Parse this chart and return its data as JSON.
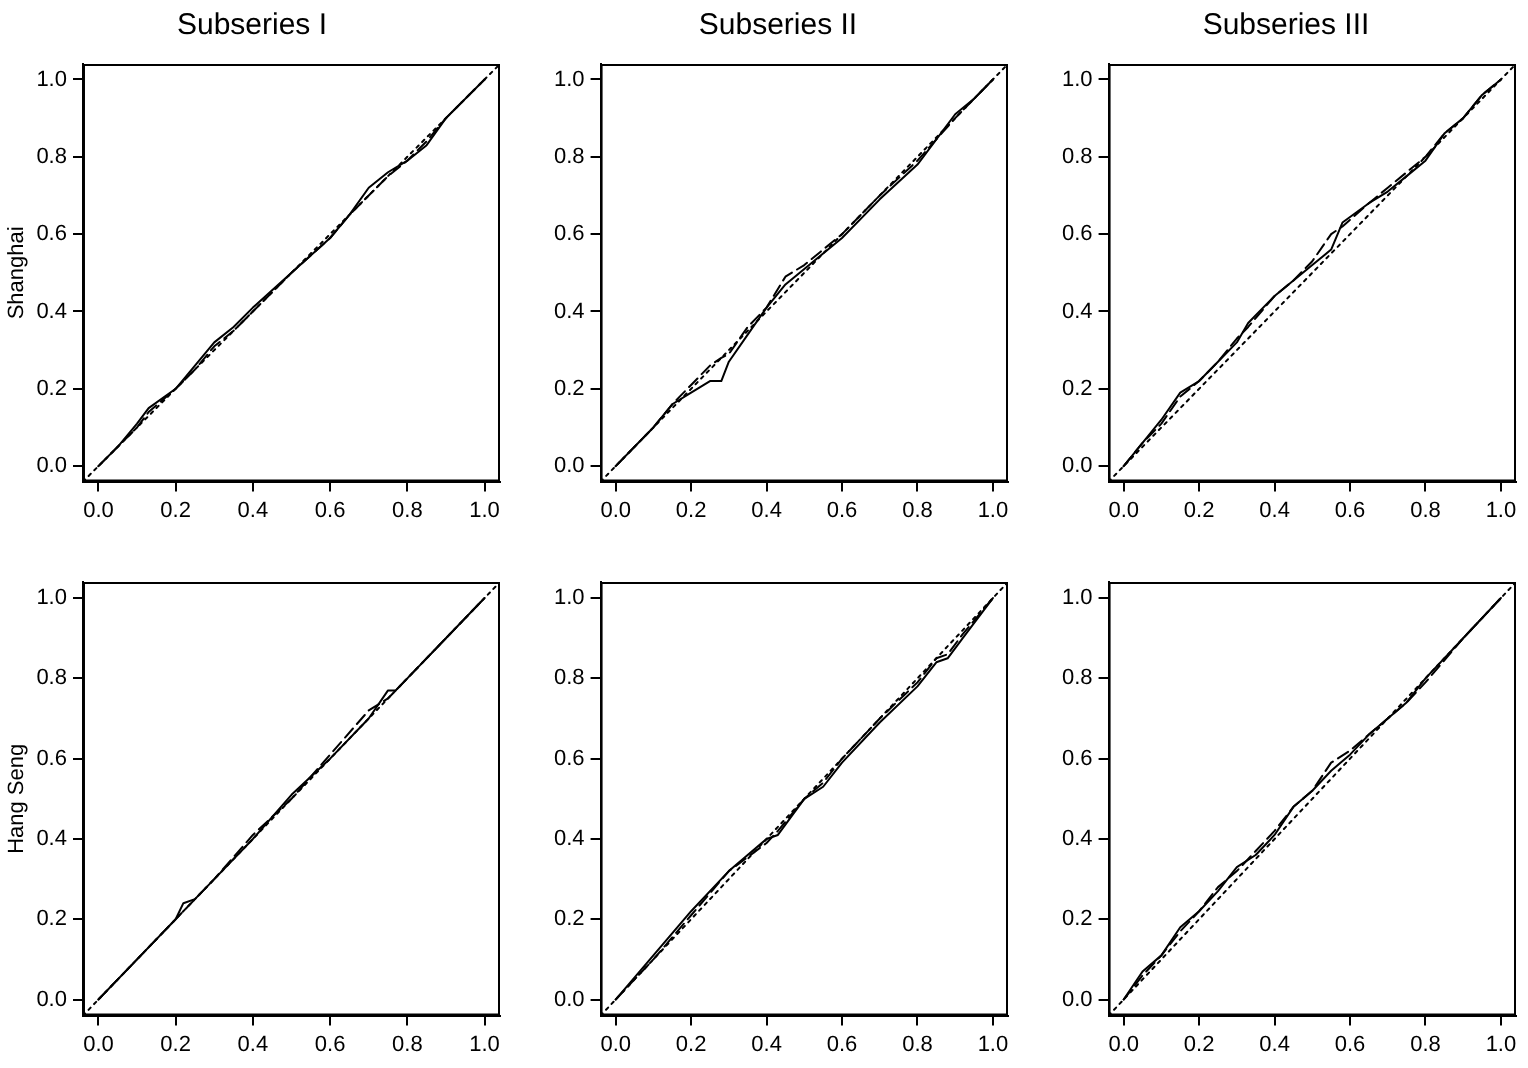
{
  "chart_data": [
    {
      "type": "line",
      "title": "Subseries I",
      "ylabel": "Shanghai",
      "marker": "none",
      "xlim": [
        -0.04,
        1.04
      ],
      "ylim": [
        -0.04,
        1.04
      ],
      "xticks": [
        {
          "value": 0,
          "label": "0.0"
        },
        {
          "value": 0.2,
          "label": "0.2"
        },
        {
          "value": 0.4,
          "label": "0.4"
        },
        {
          "value": 0.6,
          "label": "0.6"
        },
        {
          "value": 0.8,
          "label": "0.8"
        },
        {
          "value": 1,
          "label": "1.0"
        }
      ],
      "yticks": [
        {
          "value": 0,
          "label": "0.0"
        },
        {
          "value": 0.2,
          "label": "0.2"
        },
        {
          "value": 0.4,
          "label": "0.4"
        },
        {
          "value": 0.6,
          "label": "0.6"
        },
        {
          "value": 0.8,
          "label": "0.8"
        },
        {
          "value": 1,
          "label": "1.0"
        }
      ],
      "series": [
        {
          "color": "#000000",
          "line_style": "solid",
          "x": [
            0,
            0.05,
            0.1,
            0.13,
            0.2,
            0.25,
            0.3,
            0.35,
            0.4,
            0.5,
            0.6,
            0.65,
            0.7,
            0.75,
            0.8,
            0.85,
            0.9,
            1
          ],
          "values": [
            0,
            0.05,
            0.11,
            0.15,
            0.2,
            0.26,
            0.32,
            0.36,
            0.41,
            0.5,
            0.59,
            0.65,
            0.72,
            0.76,
            0.79,
            0.83,
            0.9,
            1
          ]
        },
        {
          "color": "#000000",
          "line_style": "dashed",
          "x": [
            0,
            0.05,
            0.1,
            0.13,
            0.2,
            0.25,
            0.3,
            0.35,
            0.4,
            0.5,
            0.6,
            0.65,
            0.7,
            0.75,
            0.8,
            0.85,
            0.9,
            1
          ],
          "values": [
            0,
            0.05,
            0.1,
            0.14,
            0.2,
            0.25,
            0.31,
            0.35,
            0.4,
            0.5,
            0.59,
            0.65,
            0.7,
            0.75,
            0.79,
            0.84,
            0.9,
            1
          ]
        },
        {
          "color": "#000000",
          "line_style": "dotted",
          "x": [
            -0.04,
            1.04
          ],
          "values": [
            -0.04,
            1.04
          ]
        }
      ]
    },
    {
      "type": "line",
      "title": "Subseries II",
      "marker": "none",
      "xlim": [
        -0.04,
        1.04
      ],
      "ylim": [
        -0.04,
        1.04
      ],
      "xticks": [
        {
          "value": 0,
          "label": "0.0"
        },
        {
          "value": 0.2,
          "label": "0.2"
        },
        {
          "value": 0.4,
          "label": "0.4"
        },
        {
          "value": 0.6,
          "label": "0.6"
        },
        {
          "value": 0.8,
          "label": "0.8"
        },
        {
          "value": 1,
          "label": "1.0"
        }
      ],
      "yticks": [
        {
          "value": 0,
          "label": "0.0"
        },
        {
          "value": 0.2,
          "label": "0.2"
        },
        {
          "value": 0.4,
          "label": "0.4"
        },
        {
          "value": 0.6,
          "label": "0.6"
        },
        {
          "value": 0.8,
          "label": "0.8"
        },
        {
          "value": 1,
          "label": "1.0"
        }
      ],
      "series": [
        {
          "color": "#000000",
          "line_style": "solid",
          "x": [
            0,
            0.05,
            0.1,
            0.15,
            0.2,
            0.25,
            0.28,
            0.3,
            0.35,
            0.4,
            0.45,
            0.5,
            0.6,
            0.7,
            0.8,
            0.9,
            0.95,
            1
          ],
          "values": [
            0,
            0.05,
            0.1,
            0.16,
            0.19,
            0.22,
            0.22,
            0.27,
            0.34,
            0.41,
            0.47,
            0.51,
            0.59,
            0.69,
            0.78,
            0.91,
            0.95,
            1
          ]
        },
        {
          "color": "#000000",
          "line_style": "dashed",
          "x": [
            0,
            0.05,
            0.1,
            0.15,
            0.2,
            0.25,
            0.28,
            0.3,
            0.35,
            0.4,
            0.45,
            0.5,
            0.6,
            0.7,
            0.8,
            0.9,
            0.95,
            1
          ],
          "values": [
            0,
            0.05,
            0.1,
            0.16,
            0.21,
            0.26,
            0.28,
            0.29,
            0.36,
            0.41,
            0.49,
            0.52,
            0.6,
            0.7,
            0.79,
            0.9,
            0.95,
            1
          ]
        },
        {
          "color": "#000000",
          "line_style": "dotted",
          "x": [
            -0.04,
            1.04
          ],
          "values": [
            -0.04,
            1.04
          ]
        }
      ]
    },
    {
      "type": "line",
      "title": "Subseries III",
      "marker": "none",
      "xlim": [
        -0.04,
        1.04
      ],
      "ylim": [
        -0.04,
        1.04
      ],
      "xticks": [
        {
          "value": 0,
          "label": "0.0"
        },
        {
          "value": 0.2,
          "label": "0.2"
        },
        {
          "value": 0.4,
          "label": "0.4"
        },
        {
          "value": 0.6,
          "label": "0.6"
        },
        {
          "value": 0.8,
          "label": "0.8"
        },
        {
          "value": 1,
          "label": "1.0"
        }
      ],
      "yticks": [
        {
          "value": 0,
          "label": "0.0"
        },
        {
          "value": 0.2,
          "label": "0.2"
        },
        {
          "value": 0.4,
          "label": "0.4"
        },
        {
          "value": 0.6,
          "label": "0.6"
        },
        {
          "value": 0.8,
          "label": "0.8"
        },
        {
          "value": 1,
          "label": "1.0"
        }
      ],
      "series": [
        {
          "color": "#000000",
          "line_style": "solid",
          "x": [
            0,
            0.05,
            0.1,
            0.15,
            0.2,
            0.25,
            0.3,
            0.33,
            0.4,
            0.45,
            0.5,
            0.55,
            0.58,
            0.65,
            0.7,
            0.75,
            0.8,
            0.85,
            0.9,
            0.95,
            1
          ],
          "values": [
            0,
            0.06,
            0.12,
            0.19,
            0.22,
            0.27,
            0.32,
            0.37,
            0.44,
            0.48,
            0.52,
            0.56,
            0.63,
            0.68,
            0.71,
            0.75,
            0.79,
            0.86,
            0.9,
            0.96,
            1
          ]
        },
        {
          "color": "#000000",
          "line_style": "dashed",
          "x": [
            0,
            0.05,
            0.1,
            0.15,
            0.2,
            0.25,
            0.3,
            0.33,
            0.4,
            0.45,
            0.5,
            0.55,
            0.58,
            0.65,
            0.7,
            0.75,
            0.8,
            0.85,
            0.9,
            0.95,
            1
          ],
          "values": [
            0,
            0.06,
            0.11,
            0.18,
            0.22,
            0.27,
            0.33,
            0.36,
            0.44,
            0.48,
            0.53,
            0.6,
            0.62,
            0.68,
            0.72,
            0.76,
            0.8,
            0.86,
            0.9,
            0.96,
            1
          ]
        },
        {
          "color": "#000000",
          "line_style": "dotted",
          "x": [
            -0.04,
            1.04
          ],
          "values": [
            -0.04,
            1.04
          ]
        }
      ]
    },
    {
      "type": "line",
      "ylabel": "Hang Seng",
      "marker": "none",
      "xlim": [
        -0.04,
        1.04
      ],
      "ylim": [
        -0.04,
        1.04
      ],
      "xticks": [
        {
          "value": 0,
          "label": "0.0"
        },
        {
          "value": 0.2,
          "label": "0.2"
        },
        {
          "value": 0.4,
          "label": "0.4"
        },
        {
          "value": 0.6,
          "label": "0.6"
        },
        {
          "value": 0.8,
          "label": "0.8"
        },
        {
          "value": 1,
          "label": "1.0"
        }
      ],
      "yticks": [
        {
          "value": 0,
          "label": "0.0"
        },
        {
          "value": 0.2,
          "label": "0.2"
        },
        {
          "value": 0.4,
          "label": "0.4"
        },
        {
          "value": 0.6,
          "label": "0.6"
        },
        {
          "value": 0.8,
          "label": "0.8"
        },
        {
          "value": 1,
          "label": "1.0"
        }
      ],
      "series": [
        {
          "color": "#000000",
          "line_style": "solid",
          "x": [
            0,
            0.1,
            0.2,
            0.22,
            0.25,
            0.3,
            0.4,
            0.5,
            0.6,
            0.7,
            0.75,
            0.77,
            0.8,
            0.9,
            1
          ],
          "values": [
            0,
            0.1,
            0.2,
            0.24,
            0.25,
            0.3,
            0.4,
            0.51,
            0.6,
            0.7,
            0.77,
            0.77,
            0.8,
            0.9,
            1
          ]
        },
        {
          "color": "#000000",
          "line_style": "dashed",
          "x": [
            0,
            0.1,
            0.2,
            0.22,
            0.25,
            0.3,
            0.4,
            0.5,
            0.6,
            0.7,
            0.75,
            0.77,
            0.8,
            0.9,
            1
          ],
          "values": [
            0,
            0.1,
            0.2,
            0.22,
            0.25,
            0.3,
            0.41,
            0.5,
            0.61,
            0.72,
            0.75,
            0.77,
            0.8,
            0.9,
            1
          ]
        },
        {
          "color": "#000000",
          "line_style": "dotted",
          "x": [
            -0.04,
            1.04
          ],
          "values": [
            -0.04,
            1.04
          ]
        }
      ]
    },
    {
      "type": "line",
      "marker": "none",
      "xlim": [
        -0.04,
        1.04
      ],
      "ylim": [
        -0.04,
        1.04
      ],
      "xticks": [
        {
          "value": 0,
          "label": "0.0"
        },
        {
          "value": 0.2,
          "label": "0.2"
        },
        {
          "value": 0.4,
          "label": "0.4"
        },
        {
          "value": 0.6,
          "label": "0.6"
        },
        {
          "value": 0.8,
          "label": "0.8"
        },
        {
          "value": 1,
          "label": "1.0"
        }
      ],
      "yticks": [
        {
          "value": 0,
          "label": "0.0"
        },
        {
          "value": 0.2,
          "label": "0.2"
        },
        {
          "value": 0.4,
          "label": "0.4"
        },
        {
          "value": 0.6,
          "label": "0.6"
        },
        {
          "value": 0.8,
          "label": "0.8"
        },
        {
          "value": 1,
          "label": "1.0"
        }
      ],
      "series": [
        {
          "color": "#000000",
          "line_style": "solid",
          "x": [
            0,
            0.1,
            0.2,
            0.3,
            0.4,
            0.43,
            0.5,
            0.55,
            0.6,
            0.7,
            0.8,
            0.85,
            0.88,
            0.92,
            1
          ],
          "values": [
            0,
            0.11,
            0.22,
            0.32,
            0.4,
            0.41,
            0.5,
            0.53,
            0.59,
            0.69,
            0.78,
            0.84,
            0.85,
            0.9,
            1
          ]
        },
        {
          "color": "#000000",
          "line_style": "dashed",
          "x": [
            0,
            0.1,
            0.2,
            0.3,
            0.4,
            0.43,
            0.5,
            0.55,
            0.6,
            0.7,
            0.8,
            0.85,
            0.88,
            0.92,
            1
          ],
          "values": [
            0,
            0.1,
            0.21,
            0.32,
            0.39,
            0.42,
            0.5,
            0.54,
            0.6,
            0.7,
            0.79,
            0.85,
            0.86,
            0.91,
            1
          ]
        },
        {
          "color": "#000000",
          "line_style": "dotted",
          "x": [
            -0.04,
            1.04
          ],
          "values": [
            -0.04,
            1.04
          ]
        }
      ]
    },
    {
      "type": "line",
      "marker": "none",
      "xlim": [
        -0.04,
        1.04
      ],
      "ylim": [
        -0.04,
        1.04
      ],
      "xticks": [
        {
          "value": 0,
          "label": "0.0"
        },
        {
          "value": 0.2,
          "label": "0.2"
        },
        {
          "value": 0.4,
          "label": "0.4"
        },
        {
          "value": 0.6,
          "label": "0.6"
        },
        {
          "value": 0.8,
          "label": "0.8"
        },
        {
          "value": 1,
          "label": "1.0"
        }
      ],
      "yticks": [
        {
          "value": 0,
          "label": "0.0"
        },
        {
          "value": 0.2,
          "label": "0.2"
        },
        {
          "value": 0.4,
          "label": "0.4"
        },
        {
          "value": 0.6,
          "label": "0.6"
        },
        {
          "value": 0.8,
          "label": "0.8"
        },
        {
          "value": 1,
          "label": "1.0"
        }
      ],
      "series": [
        {
          "color": "#000000",
          "line_style": "solid",
          "x": [
            0,
            0.05,
            0.1,
            0.15,
            0.2,
            0.25,
            0.3,
            0.35,
            0.4,
            0.45,
            0.5,
            0.55,
            0.6,
            0.65,
            0.7,
            0.75,
            0.8,
            0.9,
            1
          ],
          "values": [
            0,
            0.07,
            0.11,
            0.18,
            0.22,
            0.27,
            0.33,
            0.36,
            0.41,
            0.48,
            0.52,
            0.57,
            0.61,
            0.66,
            0.7,
            0.74,
            0.8,
            0.9,
            1
          ]
        },
        {
          "color": "#000000",
          "line_style": "dashed",
          "x": [
            0,
            0.05,
            0.1,
            0.15,
            0.2,
            0.25,
            0.3,
            0.35,
            0.4,
            0.45,
            0.5,
            0.55,
            0.6,
            0.65,
            0.7,
            0.75,
            0.8,
            0.9,
            1
          ],
          "values": [
            0,
            0.06,
            0.11,
            0.17,
            0.22,
            0.28,
            0.32,
            0.37,
            0.42,
            0.48,
            0.52,
            0.59,
            0.62,
            0.66,
            0.7,
            0.74,
            0.79,
            0.9,
            1
          ]
        },
        {
          "color": "#000000",
          "line_style": "dotted",
          "x": [
            -0.04,
            1.04
          ],
          "values": [
            -0.04,
            1.04
          ]
        }
      ]
    }
  ]
}
